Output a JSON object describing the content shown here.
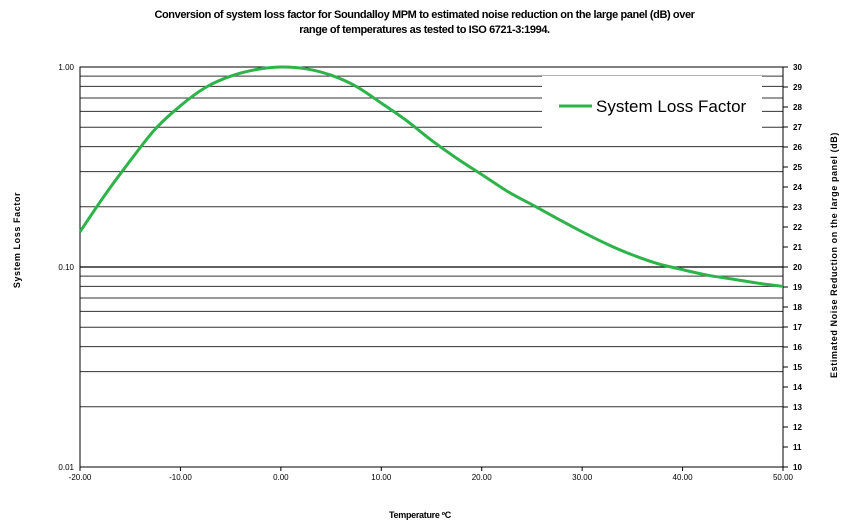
{
  "chart_data": {
    "type": "line",
    "title": "Conversion of system loss factor for Soundalloy MPM to estimated noise reduction on the large panel (dB) over",
    "subtitle": "range of temperatures as tested to ISO  6721-3:1994.",
    "xlabel": "Temperature ºC",
    "ylabel": "System Loss Factor",
    "y2label": "Estimated Noise Reduction on the large panel (dB)",
    "xlim": [
      -20,
      50
    ],
    "ylim": [
      0.01,
      1.0
    ],
    "y_scale": "log",
    "y2lim": [
      10,
      30
    ],
    "x_ticks": [
      "-20.00",
      "-10.00",
      "0.00",
      "10.00",
      "20.00",
      "30.00",
      "40.00",
      "50.00"
    ],
    "y_ticks": [
      "1.00",
      "0.10",
      "0.01"
    ],
    "y2_ticks": [
      "10",
      "11",
      "12",
      "13",
      "14",
      "15",
      "16",
      "17",
      "18",
      "19",
      "20",
      "21",
      "22",
      "23",
      "24",
      "25",
      "26",
      "27",
      "28",
      "29",
      "30"
    ],
    "grid": true,
    "legend_position": "top-right",
    "series": [
      {
        "name": "System Loss Factor",
        "color": "#2db34a",
        "x": [
          -20,
          -17.5,
          -15,
          -12.5,
          -10,
          -7.5,
          -5,
          -2.5,
          0,
          2.5,
          5,
          7.5,
          10,
          12.5,
          15,
          17.5,
          20,
          22.5,
          25,
          27.5,
          30,
          32.5,
          35,
          37.5,
          40,
          42.5,
          45,
          47.5,
          50
        ],
        "y": [
          0.15,
          0.23,
          0.34,
          0.49,
          0.64,
          0.79,
          0.9,
          0.97,
          1.0,
          0.98,
          0.91,
          0.8,
          0.66,
          0.54,
          0.43,
          0.35,
          0.29,
          0.24,
          0.205,
          0.175,
          0.15,
          0.13,
          0.115,
          0.104,
          0.097,
          0.091,
          0.087,
          0.083,
          0.08
        ]
      }
    ]
  }
}
